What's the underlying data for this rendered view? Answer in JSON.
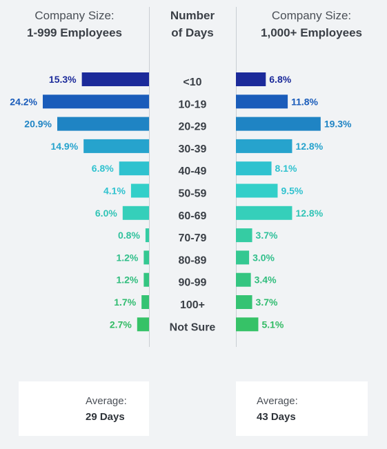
{
  "headers": {
    "left_line1": "Company Size:",
    "left_line2": "1-999 Employees",
    "middle_line1": "Number",
    "middle_line2": "of Days",
    "right_line1": "Company Size:",
    "right_line2": "1,000+ Employees"
  },
  "chart_data": {
    "type": "bar",
    "categories": [
      "<10",
      "10-19",
      "20-29",
      "30-39",
      "40-49",
      "50-59",
      "60-69",
      "70-79",
      "80-89",
      "90-99",
      "100+",
      "Not Sure"
    ],
    "series": [
      {
        "name": "1-999 Employees",
        "values": [
          15.3,
          24.2,
          20.9,
          14.9,
          6.8,
          4.1,
          6.0,
          0.8,
          1.2,
          1.2,
          1.7,
          2.7
        ],
        "labels": [
          "15.3%",
          "24.2%",
          "20.9%",
          "14.9%",
          "6.8%",
          "4.1%",
          "6.0%",
          "0.8%",
          "1.2%",
          "1.2%",
          "1.7%",
          "2.7%"
        ]
      },
      {
        "name": "1,000+ Employees",
        "values": [
          6.8,
          11.8,
          19.3,
          12.8,
          8.1,
          9.5,
          12.8,
          3.7,
          3.0,
          3.4,
          3.7,
          5.1
        ],
        "labels": [
          "6.8%",
          "11.8%",
          "19.3%",
          "12.8%",
          "8.1%",
          "9.5%",
          "12.8%",
          "3.7%",
          "3.0%",
          "3.4%",
          "3.7%",
          "5.1%"
        ]
      }
    ],
    "row_colors": [
      "#1b2a9a",
      "#1a5cba",
      "#1f84c4",
      "#26a3cd",
      "#2fc2cf",
      "#33cfc9",
      "#35cfba",
      "#35cca3",
      "#34c891",
      "#34c581",
      "#35c373",
      "#36c267"
    ],
    "label_colors": [
      "#1b2a9a",
      "#1a5cba",
      "#1f84c4",
      "#26a3cd",
      "#2fc2cf",
      "#2fc2cf",
      "#31c4b6",
      "#30c19c",
      "#30bf8a",
      "#30bd7d",
      "#31bc70",
      "#32bb64"
    ],
    "xlim": [
      0,
      25
    ]
  },
  "averages": {
    "left_label": "Average:",
    "left_value": "29 Days",
    "right_label": "Average:",
    "right_value": "43 Days"
  }
}
